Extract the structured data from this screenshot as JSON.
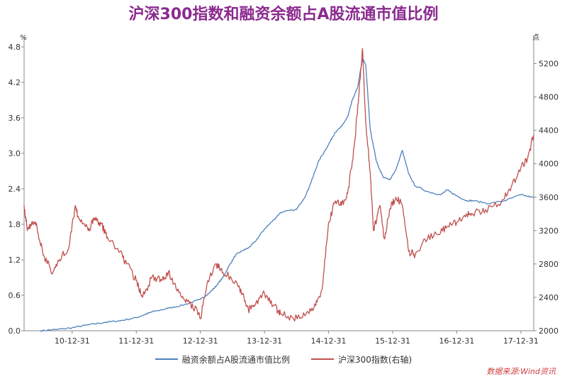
{
  "chart_data": {
    "type": "line",
    "title": "沪深300指数和融资余额占A股流通市值比例",
    "ylabel_left": "%",
    "ylabel_right": "点",
    "ylim_left": [
      0,
      4.8
    ],
    "yticks_left": [
      "0.0",
      "0.6",
      "1.2",
      "1.8",
      "2.4",
      "3.0",
      "3.6",
      "4.2",
      "4.8"
    ],
    "ylim_right": [
      2000,
      5400
    ],
    "yticks_right": [
      "2000",
      "2400",
      "2800",
      "3200",
      "3600",
      "4000",
      "4400",
      "4800",
      "5200"
    ],
    "x_range": [
      2010.0,
      2017.95
    ],
    "xticks": [
      {
        "pos": 2010.75,
        "label": "10-12-31"
      },
      {
        "pos": 2011.75,
        "label": "11-12-31"
      },
      {
        "pos": 2012.75,
        "label": "12-12-31"
      },
      {
        "pos": 2013.75,
        "label": "13-12-31"
      },
      {
        "pos": 2014.75,
        "label": "14-12-31"
      },
      {
        "pos": 2015.75,
        "label": "15-12-31"
      },
      {
        "pos": 2016.75,
        "label": "16-12-31"
      },
      {
        "pos": 2017.75,
        "label": "17-12-31"
      }
    ],
    "grid": false,
    "legend_position": "bottom",
    "series": [
      {
        "name": "融资余额占A股流通市值比例",
        "axis": "left",
        "color": "#4f81bd",
        "points": [
          [
            2010.25,
            0.0
          ],
          [
            2010.5,
            0.02
          ],
          [
            2010.75,
            0.05
          ],
          [
            2011.0,
            0.1
          ],
          [
            2011.25,
            0.14
          ],
          [
            2011.5,
            0.17
          ],
          [
            2011.75,
            0.22
          ],
          [
            2011.9,
            0.28
          ],
          [
            2012.0,
            0.32
          ],
          [
            2012.25,
            0.38
          ],
          [
            2012.5,
            0.44
          ],
          [
            2012.75,
            0.53
          ],
          [
            2012.9,
            0.65
          ],
          [
            2013.0,
            0.76
          ],
          [
            2013.1,
            0.9
          ],
          [
            2013.2,
            1.1
          ],
          [
            2013.3,
            1.28
          ],
          [
            2013.4,
            1.35
          ],
          [
            2013.5,
            1.4
          ],
          [
            2013.6,
            1.5
          ],
          [
            2013.75,
            1.72
          ],
          [
            2013.9,
            1.88
          ],
          [
            2014.0,
            2.0
          ],
          [
            2014.25,
            2.05
          ],
          [
            2014.4,
            2.3
          ],
          [
            2014.5,
            2.58
          ],
          [
            2014.6,
            2.88
          ],
          [
            2014.75,
            3.15
          ],
          [
            2014.85,
            3.35
          ],
          [
            2014.95,
            3.45
          ],
          [
            2015.05,
            3.62
          ],
          [
            2015.12,
            3.9
          ],
          [
            2015.2,
            4.1
          ],
          [
            2015.28,
            4.6
          ],
          [
            2015.33,
            4.5
          ],
          [
            2015.4,
            3.4
          ],
          [
            2015.5,
            2.85
          ],
          [
            2015.6,
            2.6
          ],
          [
            2015.7,
            2.55
          ],
          [
            2015.8,
            2.72
          ],
          [
            2015.9,
            3.05
          ],
          [
            2016.0,
            2.65
          ],
          [
            2016.1,
            2.45
          ],
          [
            2016.3,
            2.35
          ],
          [
            2016.5,
            2.3
          ],
          [
            2016.6,
            2.38
          ],
          [
            2016.75,
            2.28
          ],
          [
            2016.9,
            2.2
          ],
          [
            2017.0,
            2.2
          ],
          [
            2017.25,
            2.15
          ],
          [
            2017.5,
            2.2
          ],
          [
            2017.75,
            2.3
          ],
          [
            2017.95,
            2.25
          ]
        ]
      },
      {
        "name": "沪深300指数(右轴)",
        "axis": "right",
        "color": "#c0504d",
        "points": [
          [
            2010.0,
            3500
          ],
          [
            2010.05,
            3200
          ],
          [
            2010.12,
            3300
          ],
          [
            2010.2,
            3250
          ],
          [
            2010.3,
            2900
          ],
          [
            2010.45,
            2700
          ],
          [
            2010.55,
            2850
          ],
          [
            2010.7,
            3000
          ],
          [
            2010.8,
            3500
          ],
          [
            2010.85,
            3350
          ],
          [
            2011.0,
            3200
          ],
          [
            2011.1,
            3350
          ],
          [
            2011.2,
            3280
          ],
          [
            2011.3,
            3120
          ],
          [
            2011.5,
            2950
          ],
          [
            2011.6,
            2800
          ],
          [
            2011.75,
            2600
          ],
          [
            2011.85,
            2400
          ],
          [
            2012.0,
            2650
          ],
          [
            2012.15,
            2600
          ],
          [
            2012.25,
            2700
          ],
          [
            2012.4,
            2500
          ],
          [
            2012.55,
            2350
          ],
          [
            2012.7,
            2250
          ],
          [
            2012.75,
            2150
          ],
          [
            2012.85,
            2550
          ],
          [
            2013.0,
            2800
          ],
          [
            2013.1,
            2700
          ],
          [
            2013.3,
            2600
          ],
          [
            2013.4,
            2450
          ],
          [
            2013.5,
            2250
          ],
          [
            2013.6,
            2300
          ],
          [
            2013.75,
            2450
          ],
          [
            2013.9,
            2300
          ],
          [
            2014.0,
            2200
          ],
          [
            2014.2,
            2150
          ],
          [
            2014.4,
            2200
          ],
          [
            2014.55,
            2300
          ],
          [
            2014.65,
            2500
          ],
          [
            2014.75,
            3300
          ],
          [
            2014.85,
            3550
          ],
          [
            2014.95,
            3500
          ],
          [
            2015.05,
            3650
          ],
          [
            2015.15,
            4200
          ],
          [
            2015.22,
            4800
          ],
          [
            2015.28,
            5380
          ],
          [
            2015.33,
            4500
          ],
          [
            2015.4,
            3900
          ],
          [
            2015.45,
            3200
          ],
          [
            2015.55,
            3500
          ],
          [
            2015.62,
            3100
          ],
          [
            2015.7,
            3450
          ],
          [
            2015.8,
            3600
          ],
          [
            2015.9,
            3500
          ],
          [
            2016.0,
            2950
          ],
          [
            2016.1,
            2900
          ],
          [
            2016.25,
            3100
          ],
          [
            2016.45,
            3150
          ],
          [
            2016.6,
            3250
          ],
          [
            2016.75,
            3300
          ],
          [
            2016.9,
            3400
          ],
          [
            2017.0,
            3400
          ],
          [
            2017.2,
            3450
          ],
          [
            2017.45,
            3550
          ],
          [
            2017.6,
            3720
          ],
          [
            2017.75,
            3950
          ],
          [
            2017.85,
            4050
          ],
          [
            2017.95,
            4350
          ]
        ]
      }
    ]
  },
  "source": "数据来源:Wind资讯"
}
